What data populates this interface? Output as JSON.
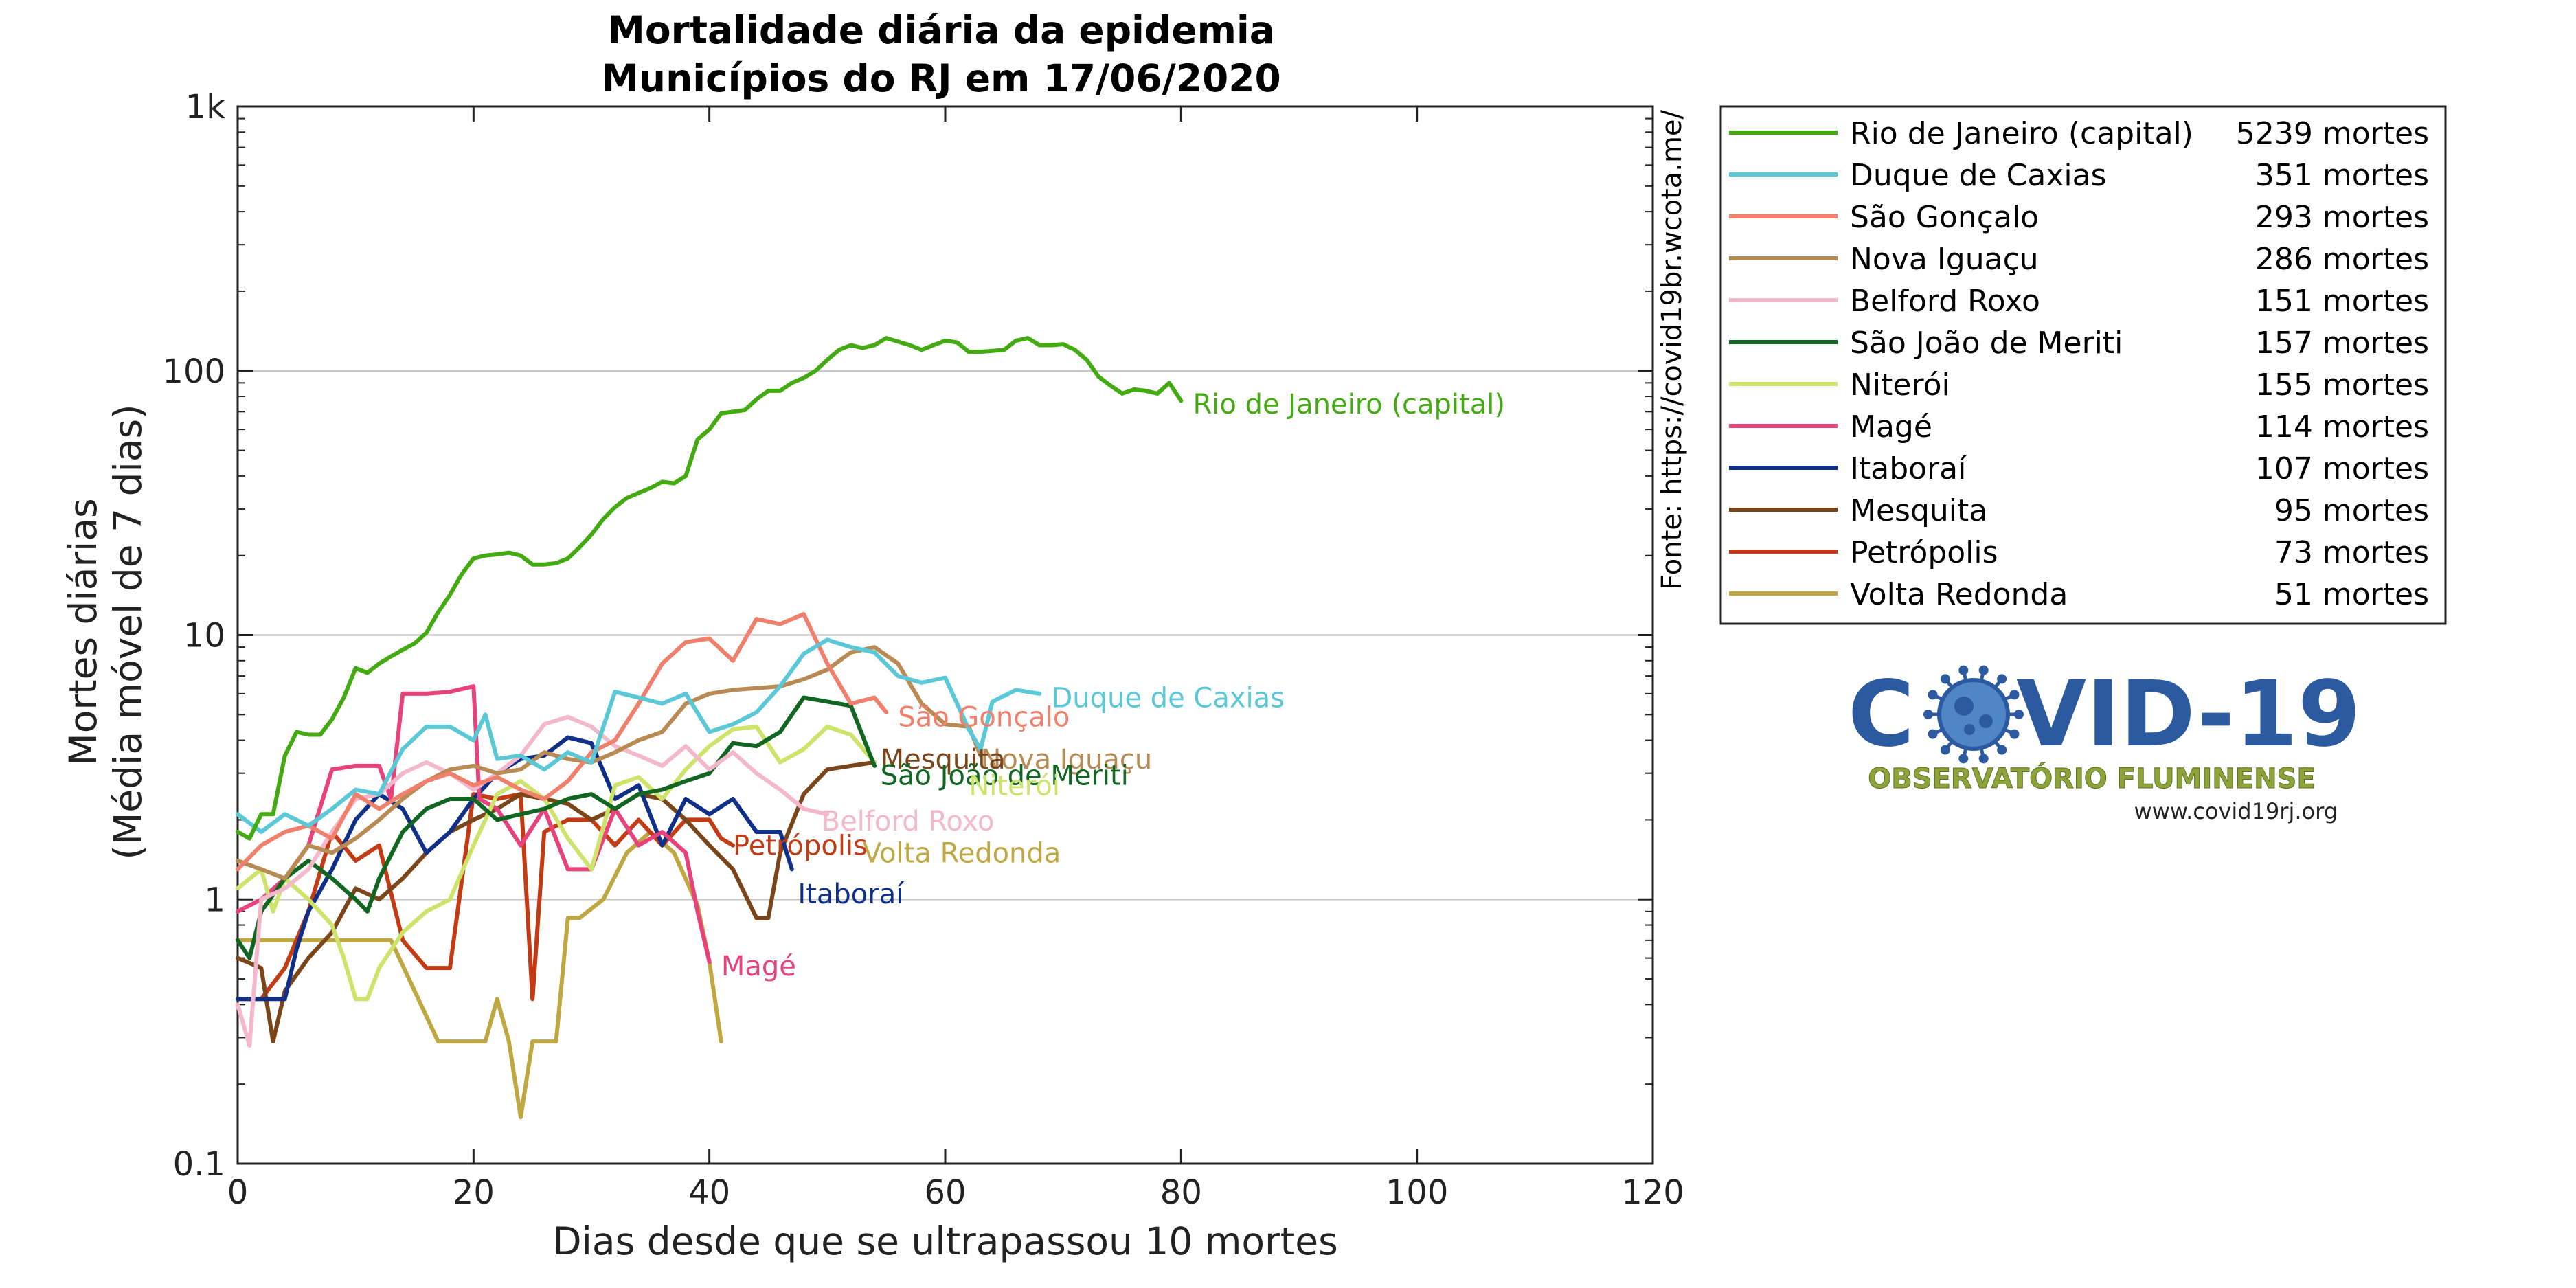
{
  "chart_data": {
    "type": "line",
    "title": [
      "Mortalidade diária da epidemia",
      "Municípios do RJ em 17/06/2020"
    ],
    "xlabel": "Dias desde que se ultrapassou 10 mortes",
    "ylabel": [
      "Mortes diárias",
      "(Média móvel de 7 dias)"
    ],
    "xlim": [
      0,
      120
    ],
    "ylim": [
      0.1,
      1000
    ],
    "yscale": "log",
    "x_ticks": [
      0,
      20,
      40,
      60,
      80,
      100,
      120
    ],
    "y_ticks": [
      {
        "value": 0.1,
        "label": "0.1"
      },
      {
        "value": 1,
        "label": "1"
      },
      {
        "value": 10,
        "label": "10"
      },
      {
        "value": 100,
        "label": "100"
      },
      {
        "value": 1000,
        "label": "1k"
      }
    ],
    "grid": "horizontal at decades",
    "legend_position": "outside-right-top",
    "series": [
      {
        "name": "Rio de Janeiro (capital)",
        "deaths": "5239 mortes",
        "color": "#44aa11",
        "x": [
          0,
          1,
          2,
          3,
          4,
          5,
          6,
          7,
          8,
          9,
          10,
          11,
          12,
          13,
          14,
          15,
          16,
          17,
          18,
          19,
          20,
          21,
          22,
          23,
          24,
          25,
          26,
          27,
          28,
          29,
          30,
          31,
          32,
          33,
          34,
          35,
          36,
          37,
          38,
          39,
          40,
          41,
          42,
          43,
          44,
          45,
          46,
          47,
          48,
          49,
          50,
          51,
          52,
          53,
          54,
          55,
          56,
          57,
          58,
          59,
          60,
          61,
          62,
          63,
          64,
          65,
          66,
          67,
          68,
          69,
          70,
          71,
          72,
          73,
          74,
          75,
          76,
          77,
          78,
          79,
          80
        ],
        "y": [
          1.8,
          1.7,
          2.1,
          2.1,
          3.5,
          4.3,
          4.2,
          4.2,
          4.8,
          5.8,
          7.5,
          7.2,
          7.8,
          8.3,
          8.8,
          9.3,
          10.2,
          12.2,
          14.2,
          17.0,
          19.5,
          20.0,
          20.2,
          20.5,
          20.0,
          18.5,
          18.5,
          18.7,
          19.5,
          21.5,
          24.0,
          27.5,
          30.5,
          33.0,
          34.5,
          36.0,
          38.0,
          37.5,
          40.0,
          55.0,
          60.0,
          69.0,
          70.0,
          71.0,
          78.0,
          84.0,
          84.0,
          90.0,
          94.0,
          100.0,
          110.0,
          120.0,
          125.0,
          122.0,
          125.0,
          133.0,
          129.0,
          125.0,
          120.0,
          125.0,
          130.0,
          128.0,
          118.0,
          118.0,
          119.0,
          120.0,
          130.0,
          133.0,
          125.0,
          125.0,
          126.0,
          120.0,
          110.0,
          95.0,
          88.0,
          82.0,
          85.0,
          84.0,
          82.0,
          90.0,
          77.0
        ]
      },
      {
        "name": "Duque de Caxias",
        "deaths": "351 mortes",
        "color": "#5bc8d8",
        "x": [
          0,
          2,
          4,
          6,
          8,
          10,
          12,
          14,
          16,
          18,
          20,
          21,
          22,
          24,
          26,
          28,
          30,
          32,
          34,
          36,
          38,
          40,
          42,
          44,
          46,
          48,
          50,
          52,
          54,
          56,
          58,
          60,
          62,
          63,
          64,
          66,
          68
        ],
        "y": [
          2.1,
          1.8,
          2.1,
          1.9,
          2.2,
          2.6,
          2.5,
          3.7,
          4.5,
          4.5,
          4.0,
          5.0,
          3.4,
          3.5,
          3.1,
          3.6,
          3.3,
          6.1,
          5.8,
          5.5,
          6.0,
          4.3,
          4.6,
          5.1,
          6.4,
          8.5,
          9.6,
          9.0,
          8.6,
          7.0,
          6.6,
          6.9,
          4.4,
          3.7,
          5.6,
          6.2,
          6.0
        ]
      },
      {
        "name": "São Gonçalo",
        "deaths": "293 mortes",
        "color": "#f07f6c",
        "x": [
          0,
          2,
          4,
          6,
          8,
          10,
          12,
          14,
          16,
          18,
          20,
          22,
          24,
          26,
          28,
          30,
          32,
          34,
          36,
          38,
          40,
          42,
          44,
          46,
          48,
          50,
          52,
          54,
          55
        ],
        "y": [
          1.3,
          1.6,
          1.8,
          1.9,
          1.7,
          2.5,
          2.2,
          2.5,
          2.8,
          3.0,
          2.7,
          2.9,
          2.6,
          2.4,
          2.8,
          3.6,
          4.0,
          5.5,
          7.8,
          9.4,
          9.7,
          8.0,
          11.5,
          11.0,
          12.0,
          7.8,
          5.5,
          5.8,
          5.1
        ]
      },
      {
        "name": "Nova Iguaçu",
        "deaths": "286 mortes",
        "color": "#b98b54",
        "x": [
          0,
          2,
          4,
          6,
          8,
          10,
          12,
          14,
          16,
          18,
          20,
          22,
          24,
          26,
          28,
          30,
          32,
          34,
          36,
          38,
          40,
          42,
          44,
          46,
          48,
          50,
          52,
          54,
          56,
          58,
          60,
          62,
          63
        ],
        "y": [
          1.4,
          1.3,
          1.2,
          1.6,
          1.5,
          1.7,
          2.0,
          2.4,
          2.8,
          3.1,
          3.2,
          3.0,
          3.1,
          3.6,
          3.4,
          3.3,
          3.6,
          4.0,
          4.3,
          5.5,
          6.0,
          6.2,
          6.3,
          6.4,
          6.8,
          7.4,
          8.6,
          9.0,
          7.8,
          5.5,
          4.6,
          4.5,
          3.5
        ]
      },
      {
        "name": "Belford Roxo",
        "deaths": "151 mortes",
        "color": "#f4b8cc",
        "x": [
          0,
          1,
          2,
          4,
          6,
          8,
          10,
          12,
          14,
          16,
          18,
          20,
          22,
          24,
          26,
          28,
          30,
          32,
          34,
          36,
          38,
          40,
          42,
          44,
          46,
          48,
          50
        ],
        "y": [
          0.4,
          0.28,
          1.0,
          1.1,
          1.3,
          1.8,
          2.4,
          2.5,
          3.0,
          3.3,
          3.0,
          2.6,
          3.0,
          3.5,
          4.6,
          4.9,
          4.5,
          3.8,
          3.5,
          3.2,
          3.8,
          3.1,
          3.6,
          3.0,
          2.6,
          2.2,
          2.1
        ]
      },
      {
        "name": "São João de Meriti",
        "deaths": "157 mortes",
        "color": "#116622",
        "x": [
          0,
          1,
          2,
          4,
          6,
          8,
          10,
          11,
          12,
          14,
          16,
          18,
          20,
          22,
          24,
          26,
          28,
          30,
          32,
          34,
          36,
          38,
          40,
          42,
          44,
          46,
          48,
          50,
          52,
          54
        ],
        "y": [
          0.7,
          0.6,
          0.9,
          1.2,
          1.4,
          1.2,
          1.0,
          0.9,
          1.2,
          1.8,
          2.2,
          2.4,
          2.4,
          2.0,
          2.1,
          2.2,
          2.4,
          2.5,
          2.2,
          2.5,
          2.6,
          2.8,
          3.0,
          3.9,
          3.8,
          4.3,
          5.8,
          5.6,
          5.4,
          3.2
        ]
      },
      {
        "name": "Niterói",
        "deaths": "155 mortes",
        "color": "#cde36a",
        "x": [
          0,
          2,
          3,
          4,
          6,
          8,
          9,
          10,
          11,
          12,
          14,
          16,
          18,
          20,
          22,
          24,
          26,
          28,
          30,
          32,
          34,
          36,
          38,
          40,
          42,
          44,
          46,
          48,
          50,
          52,
          54
        ],
        "y": [
          1.1,
          1.3,
          0.9,
          1.2,
          1.0,
          0.8,
          0.6,
          0.42,
          0.42,
          0.55,
          0.75,
          0.9,
          1.0,
          1.6,
          2.5,
          2.8,
          2.4,
          1.7,
          1.3,
          2.7,
          2.9,
          2.4,
          3.1,
          3.8,
          4.4,
          4.5,
          3.3,
          3.7,
          4.5,
          4.2,
          3.3
        ]
      },
      {
        "name": "Magé",
        "deaths": "114 mortes",
        "color": "#e8427c",
        "x": [
          0,
          2,
          4,
          6,
          8,
          10,
          12,
          13,
          14,
          16,
          18,
          20,
          20.5,
          22,
          24,
          26,
          28,
          30,
          32,
          34,
          36,
          38,
          39,
          40
        ],
        "y": [
          0.9,
          1.0,
          1.2,
          1.6,
          3.1,
          3.2,
          3.2,
          2.4,
          6.0,
          6.0,
          6.1,
          6.4,
          2.4,
          2.2,
          1.6,
          2.2,
          1.3,
          1.3,
          2.2,
          1.6,
          1.8,
          1.5,
          0.9,
          0.58
        ]
      },
      {
        "name": "Itaboraí",
        "deaths": "107 mortes",
        "color": "#0f2f88",
        "x": [
          0,
          2,
          4,
          5,
          6,
          8,
          10,
          12,
          14,
          16,
          18,
          20,
          22,
          24,
          26,
          28,
          30,
          32,
          34,
          36,
          38,
          40,
          42,
          44,
          46,
          47
        ],
        "y": [
          0.42,
          0.42,
          0.42,
          0.65,
          0.9,
          1.3,
          2.0,
          2.5,
          2.2,
          1.5,
          1.8,
          2.4,
          3.0,
          3.4,
          3.5,
          4.1,
          3.9,
          2.4,
          2.7,
          1.6,
          2.4,
          2.1,
          2.4,
          1.8,
          1.8,
          1.3
        ]
      },
      {
        "name": "Mesquita",
        "deaths": "95 mortes",
        "color": "#7a4519",
        "x": [
          0,
          2,
          3,
          4,
          6,
          8,
          10,
          12,
          14,
          16,
          18,
          20,
          22,
          24,
          26,
          28,
          30,
          32,
          34,
          36,
          38,
          40,
          42,
          44,
          45,
          46,
          48,
          50,
          52,
          54
        ],
        "y": [
          0.6,
          0.55,
          0.29,
          0.45,
          0.6,
          0.75,
          1.1,
          1.0,
          1.2,
          1.5,
          1.8,
          2.0,
          2.2,
          2.5,
          2.4,
          2.3,
          2.0,
          2.2,
          2.5,
          2.4,
          2.0,
          1.6,
          1.3,
          0.85,
          0.85,
          1.5,
          2.5,
          3.1,
          3.2,
          3.3
        ]
      },
      {
        "name": "Petrópolis",
        "deaths": "73 mortes",
        "color": "#c23b14",
        "x": [
          0,
          2,
          4,
          6,
          8,
          10,
          12,
          14,
          16,
          18,
          20,
          22,
          24,
          25,
          26,
          28,
          30,
          32,
          34,
          36,
          38,
          40,
          41,
          42
        ],
        "y": [
          0.42,
          0.42,
          0.55,
          0.9,
          1.8,
          1.4,
          1.6,
          0.7,
          0.55,
          0.55,
          2.5,
          2.4,
          2.5,
          0.42,
          1.8,
          2.0,
          2.0,
          1.6,
          2.0,
          1.6,
          2.0,
          2.0,
          1.7,
          1.6
        ]
      },
      {
        "name": "Volta Redonda",
        "deaths": "51 mortes",
        "color": "#bfa842",
        "x": [
          0,
          1,
          2,
          4,
          6,
          8,
          10,
          12,
          13,
          17,
          19,
          21,
          22,
          23,
          24,
          25,
          27,
          28,
          29,
          31,
          33,
          35,
          37,
          39,
          40,
          41
        ],
        "y": [
          0.7,
          0.7,
          0.7,
          0.7,
          0.7,
          0.7,
          0.7,
          0.7,
          0.7,
          0.29,
          0.29,
          0.29,
          0.42,
          0.29,
          0.15,
          0.29,
          0.29,
          0.85,
          0.85,
          1.0,
          1.5,
          1.8,
          1.5,
          0.95,
          0.58,
          0.29
        ]
      }
    ],
    "end_labels": [
      {
        "text": "Rio de Janeiro (capital)",
        "x": 81,
        "y": 75,
        "color": "#44aa11"
      },
      {
        "text": "Duque de Caxias",
        "x": 69,
        "y": 5.8,
        "color": "#5bc8d8"
      },
      {
        "text": "São Gonçalo",
        "x": 56,
        "y": 4.9,
        "color": "#f07f6c"
      },
      {
        "text": "Nova Iguaçu",
        "x": 63,
        "y": 3.4,
        "color": "#b98b54"
      },
      {
        "text": "Mesquita",
        "x": 54.5,
        "y": 3.4,
        "color": "#7a4519"
      },
      {
        "text": "São João de Meriti",
        "x": 54.5,
        "y": 2.95,
        "color": "#116622"
      },
      {
        "text": "Niterói",
        "x": 62,
        "y": 2.7,
        "color": "#cde36a"
      },
      {
        "text": "Belford Roxo",
        "x": 49.5,
        "y": 1.98,
        "color": "#f4b8cc"
      },
      {
        "text": "Petrópolis",
        "x": 42,
        "y": 1.6,
        "color": "#c23b14"
      },
      {
        "text": "Volta Redonda",
        "x": 53,
        "y": 1.5,
        "color": "#bfa842"
      },
      {
        "text": "Itaboraí",
        "x": 47.5,
        "y": 1.05,
        "color": "#0f2f88"
      },
      {
        "text": "Magé",
        "x": 41,
        "y": 0.56,
        "color": "#e8427c"
      }
    ]
  },
  "source": "Fonte: https://covid19br.wcota.me/",
  "logo": {
    "word_left": "C",
    "word_right": "VID-19",
    "subtitle": "OBSERVATÓRIO FLUMINENSE",
    "url": "www.covid19rj.org",
    "color_main": "#2c5aa0",
    "color_virus": "#4f86c6",
    "color_sub": "#8ea43b"
  }
}
